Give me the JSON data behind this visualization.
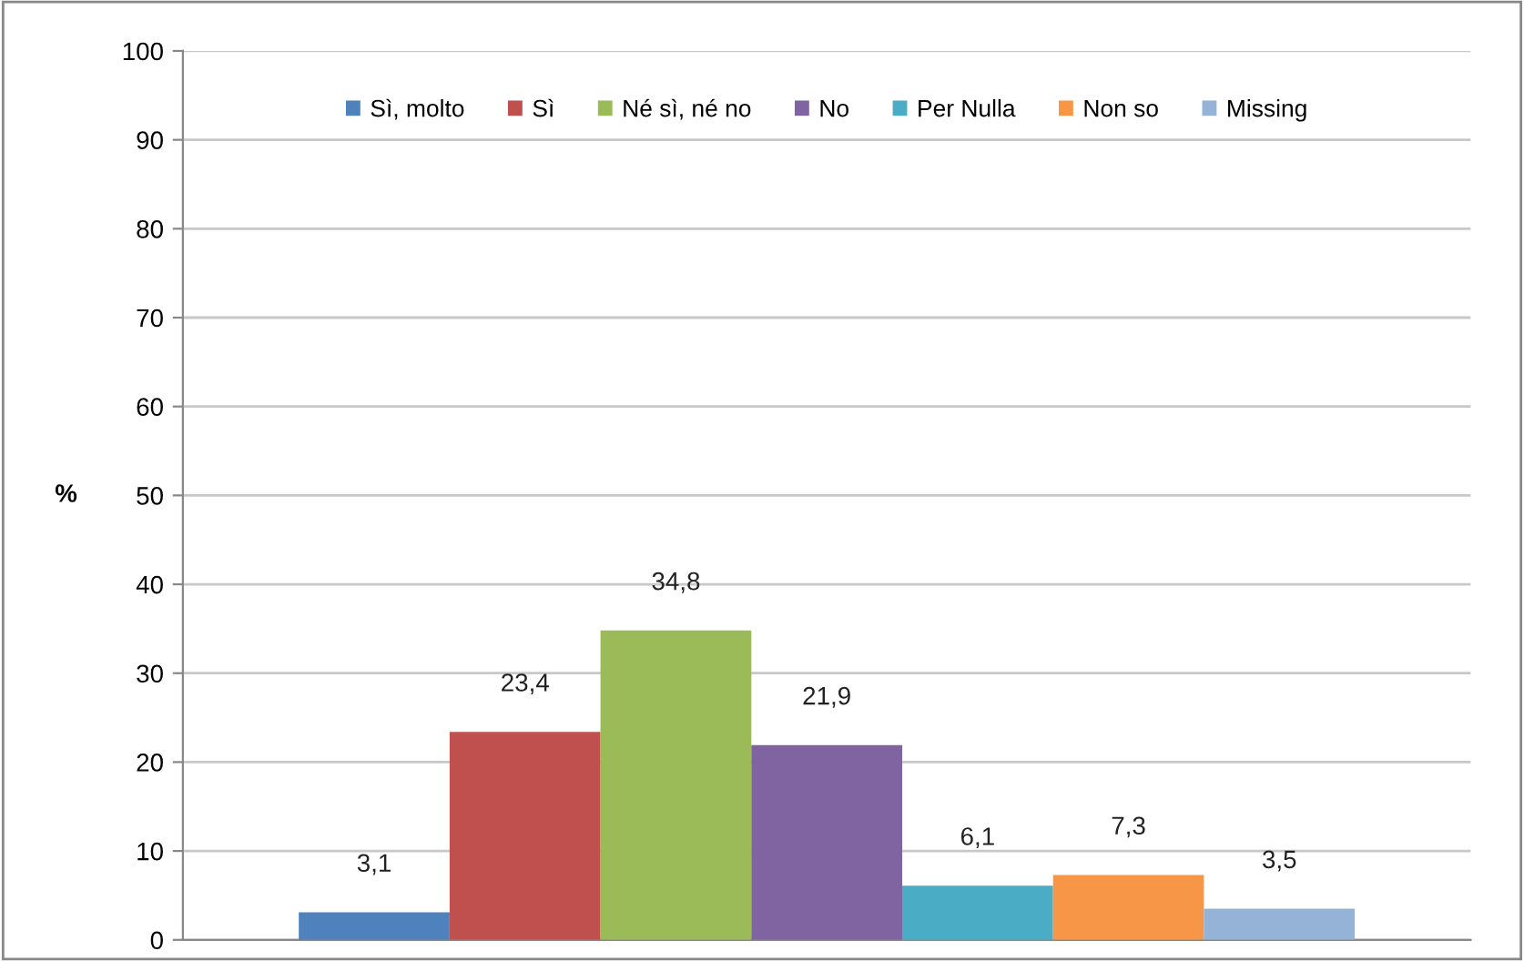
{
  "chart_data": {
    "type": "bar",
    "categories": [
      null
    ],
    "ylabel": "%",
    "ylim": [
      0,
      100
    ],
    "yticks": [
      0,
      10,
      20,
      30,
      40,
      50,
      60,
      70,
      80,
      90,
      100
    ],
    "grid": "y",
    "legend": "top",
    "series": [
      {
        "name": "Sì, molto",
        "color": "#4f81bd",
        "values": [
          3.1
        ],
        "value_labels": [
          "3,1"
        ]
      },
      {
        "name": "Sì",
        "color": "#c0504d",
        "values": [
          23.4
        ],
        "value_labels": [
          "23,4"
        ]
      },
      {
        "name": "Né sì, né no",
        "color": "#9bbb59",
        "values": [
          34.8
        ],
        "value_labels": [
          "34,8"
        ]
      },
      {
        "name": "No",
        "color": "#8064a2",
        "values": [
          21.9
        ],
        "value_labels": [
          "21,9"
        ]
      },
      {
        "name": "Per Nulla",
        "color": "#4bacc6",
        "values": [
          6.1
        ],
        "value_labels": [
          "6,1"
        ]
      },
      {
        "name": "Non so",
        "color": "#f79646",
        "values": [
          7.3
        ],
        "value_labels": [
          "7,3"
        ]
      },
      {
        "name": "Missing",
        "color": "#95b3d7",
        "values": [
          3.5
        ],
        "value_labels": [
          "3,5"
        ]
      }
    ]
  }
}
